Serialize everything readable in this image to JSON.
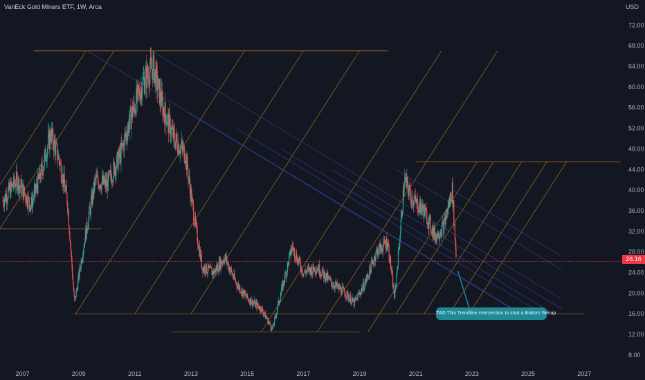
{
  "header": {
    "title": "VanEck Gold Miners ETF, 1W, Arca",
    "currency": "USD"
  },
  "last_price": {
    "label": "26.16",
    "value": 26.16,
    "color": "#f23645"
  },
  "annotation": {
    "text": "TAG This Trendline intersection to start a Bottom Set-up"
  },
  "colors": {
    "background": "#131722",
    "up": "#26a69a",
    "down": "#ef5350",
    "channel_orange": "#b8751f",
    "channel_blue": "#3a3f9e",
    "callout": "#1f8a96"
  },
  "chart_data": {
    "type": "candlestick",
    "title": "VanEck Gold Miners ETF, 1W, Arca",
    "y_axis": {
      "ticks": [
        "72.00",
        "68.00",
        "64.00",
        "60.00",
        "56.00",
        "52.00",
        "48.00",
        "44.00",
        "40.00",
        "36.00",
        "32.00",
        "28.00",
        "24.00",
        "20.00",
        "16.00",
        "12.00",
        "8.00"
      ],
      "range": [
        6.5,
        75
      ]
    },
    "x_axis": {
      "ticks": [
        "2007",
        "2009",
        "2011",
        "2013",
        "2015",
        "2017",
        "2019",
        "2021",
        "2023",
        "2025",
        "2027"
      ],
      "range": [
        2006.2,
        2028.3
      ]
    },
    "series": [
      {
        "x": [
          2006.3,
          2006.8,
          2007.3,
          2007.7,
          2008.0,
          2008.3,
          2008.6,
          2008.85,
          2009.2,
          2009.6,
          2010.0,
          2010.5,
          2010.9,
          2011.3,
          2011.65,
          2012.0,
          2012.4,
          2012.8,
          2013.1,
          2013.4,
          2013.8,
          2014.2,
          2014.6,
          2015.0,
          2015.5,
          2015.9,
          2016.2,
          2016.6,
          2017.0,
          2017.5,
          2018.0,
          2018.5,
          2018.8,
          2019.2,
          2019.6,
          2020.0,
          2020.25,
          2020.6,
          2020.9,
          2021.3,
          2021.7,
          2022.0,
          2022.3,
          2022.45
        ],
        "y": [
          38,
          42,
          37,
          44,
          51,
          46,
          38,
          18,
          30,
          42,
          41,
          47,
          55,
          61,
          64,
          56,
          50,
          47,
          35,
          25,
          24,
          27,
          22,
          19,
          17,
          13,
          20,
          29,
          24,
          25,
          22,
          20,
          18,
          22,
          28,
          30,
          19,
          42,
          38,
          36,
          31,
          33,
          40,
          26
        ]
      }
    ],
    "grid": false,
    "legend": "none"
  }
}
